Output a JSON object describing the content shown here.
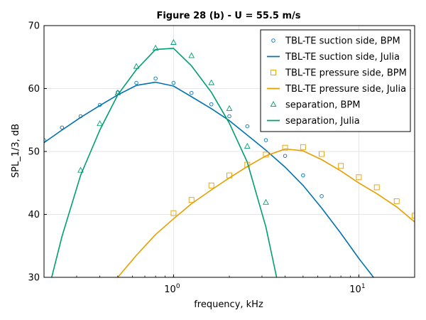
{
  "chart_data": {
    "type": "line",
    "title": "Figure 28 (b) - U = 55.5 m/s",
    "xlabel": "frequency, kHz",
    "ylabel": "SPL_1/3, dB",
    "x_scale": "log",
    "xlim": [
      0.2,
      20
    ],
    "ylim": [
      30,
      70
    ],
    "x_ticks": [
      {
        "base": "10",
        "exp": "0",
        "value": 1
      },
      {
        "base": "10",
        "exp": "1",
        "value": 10
      }
    ],
    "y_ticks": [
      "30",
      "40",
      "50",
      "60",
      "70"
    ],
    "grid": true,
    "legend_position": "top-right",
    "colors": {
      "blue": "#0072b2",
      "orange": "#e69f00",
      "green": "#009e73"
    },
    "series": [
      {
        "name": "TBL-TE suction side, BPM",
        "kind": "scatter",
        "marker": "circle",
        "color": "#0072b2",
        "x": [
          0.2,
          0.25,
          0.315,
          0.4,
          0.5,
          0.63,
          0.8,
          1.0,
          1.25,
          1.6,
          2.0,
          2.5,
          3.15,
          4.0,
          5.0,
          6.3
        ],
        "y": [
          51.8,
          53.8,
          55.6,
          57.4,
          59.4,
          60.9,
          61.6,
          60.9,
          59.3,
          57.5,
          55.6,
          54.0,
          51.8,
          49.3,
          46.2,
          42.9
        ]
      },
      {
        "name": "TBL-TE suction side, Julia",
        "kind": "line",
        "color": "#0072b2",
        "x": [
          0.2,
          0.25,
          0.315,
          0.4,
          0.5,
          0.63,
          0.8,
          1.0,
          1.25,
          1.6,
          2.0,
          2.5,
          3.15,
          4.0,
          5.0,
          6.3,
          8.0,
          10.0,
          12.0
        ],
        "y": [
          51.4,
          53.4,
          55.4,
          57.3,
          59.0,
          60.5,
          61.0,
          60.4,
          58.7,
          56.8,
          54.9,
          52.6,
          50.2,
          47.5,
          44.6,
          41.0,
          37.0,
          33.0,
          30.0
        ]
      },
      {
        "name": "TBL-TE pressure side, BPM",
        "kind": "scatter",
        "marker": "square",
        "color": "#e69f00",
        "x": [
          1.0,
          1.25,
          1.6,
          2.0,
          2.5,
          3.15,
          4.0,
          5.0,
          6.3,
          8.0,
          10.0,
          12.5,
          16.0,
          20.0
        ],
        "y": [
          40.2,
          42.3,
          44.6,
          46.2,
          47.9,
          49.5,
          50.6,
          50.7,
          49.6,
          47.7,
          45.9,
          44.3,
          42.1,
          39.8
        ]
      },
      {
        "name": "TBL-TE pressure side, Julia",
        "kind": "line",
        "color": "#e69f00",
        "x": [
          0.5,
          0.63,
          0.8,
          1.0,
          1.25,
          1.6,
          2.0,
          2.5,
          3.15,
          4.0,
          5.0,
          6.3,
          8.0,
          10.0,
          12.5,
          16.0,
          20.0
        ],
        "y": [
          30.0,
          33.5,
          36.8,
          39.3,
          41.7,
          43.9,
          45.8,
          47.6,
          49.3,
          50.4,
          50.1,
          48.7,
          46.9,
          45.0,
          43.3,
          41.2,
          38.8
        ]
      },
      {
        "name": "separation, BPM",
        "kind": "scatter",
        "marker": "triangle",
        "color": "#009e73",
        "x": [
          0.315,
          0.4,
          0.5,
          0.63,
          0.8,
          1.0,
          1.25,
          1.6,
          2.0,
          2.5,
          3.15
        ],
        "y": [
          47.0,
          54.4,
          59.3,
          63.5,
          66.4,
          67.3,
          65.2,
          60.9,
          56.8,
          50.8,
          41.9
        ]
      },
      {
        "name": "separation, Julia",
        "kind": "line",
        "color": "#009e73",
        "x": [
          0.22,
          0.25,
          0.315,
          0.4,
          0.5,
          0.63,
          0.8,
          1.0,
          1.25,
          1.6,
          2.0,
          2.5,
          3.15,
          3.6
        ],
        "y": [
          30.0,
          36.5,
          46.2,
          53.4,
          59.0,
          63.0,
          66.2,
          66.4,
          63.6,
          59.4,
          54.5,
          48.3,
          38.0,
          30.0
        ]
      }
    ]
  }
}
